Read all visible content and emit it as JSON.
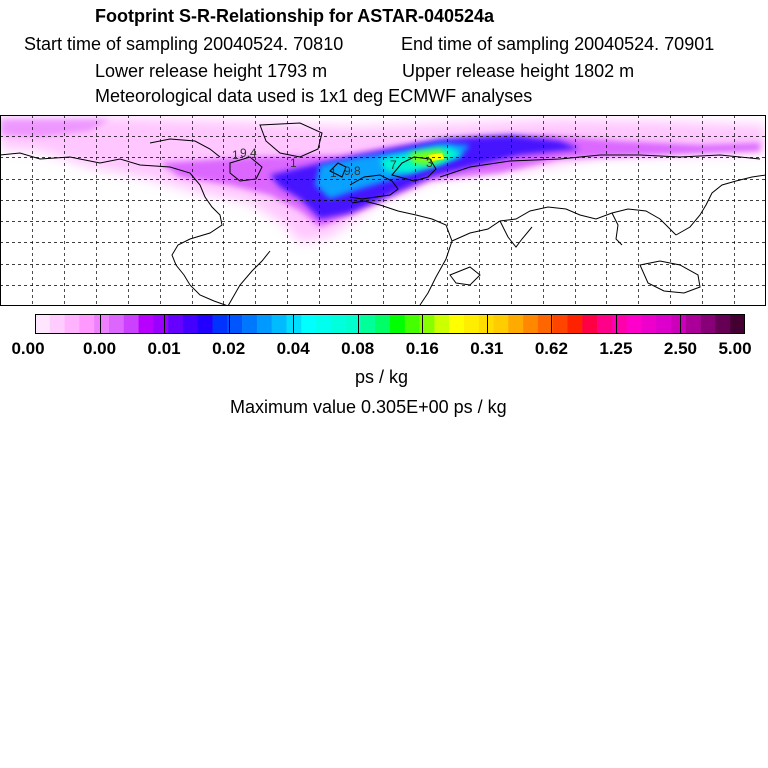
{
  "header": {
    "title": "Footprint S-R-Relationship for ASTAR-040524a",
    "start_time": "Start time of sampling 20040524. 70810",
    "end_time": "End time of sampling 20040524. 70901",
    "lower_height": "Lower release height 1793 m",
    "upper_height": "Upper release height 1802 m",
    "meteo": "Meteorological data used is 1x1 deg ECMWF analyses"
  },
  "map": {
    "contour_labels": [
      "1",
      "9.4",
      "1",
      "1",
      "9.8",
      "7",
      "3"
    ]
  },
  "colorbar": {
    "tick_labels": [
      "0.00",
      "0.00",
      "0.01",
      "0.02",
      "0.04",
      "0.08",
      "0.16",
      "0.31",
      "0.62",
      "1.25",
      "2.50",
      "5.00"
    ],
    "colors": [
      "#ffe6ff",
      "#ffccff",
      "#ffb3ff",
      "#ff99ff",
      "#ee80ff",
      "#dd66ff",
      "#cc40ff",
      "#b800ff",
      "#9900ff",
      "#6600ff",
      "#4400ff",
      "#2200ff",
      "#0033ff",
      "#0055ff",
      "#0077ff",
      "#0099ff",
      "#00bbff",
      "#00ddff",
      "#00ffff",
      "#00ffee",
      "#00ffdd",
      "#00ffcc",
      "#00ff99",
      "#00ff66",
      "#00ff00",
      "#44ff00",
      "#88ff00",
      "#ccff00",
      "#ffff00",
      "#ffee00",
      "#ffdd00",
      "#ffcc00",
      "#ffaa00",
      "#ff8800",
      "#ff6600",
      "#ff4400",
      "#ff2200",
      "#ff0044",
      "#ff0088",
      "#ff00aa",
      "#ff00cc",
      "#ee00cc",
      "#dd00cc",
      "#cc00bb",
      "#aa0099",
      "#880077",
      "#660055",
      "#440033"
    ],
    "units": "ps / kg"
  },
  "max_value": "Maximum value  0.305E+00 ps / kg"
}
